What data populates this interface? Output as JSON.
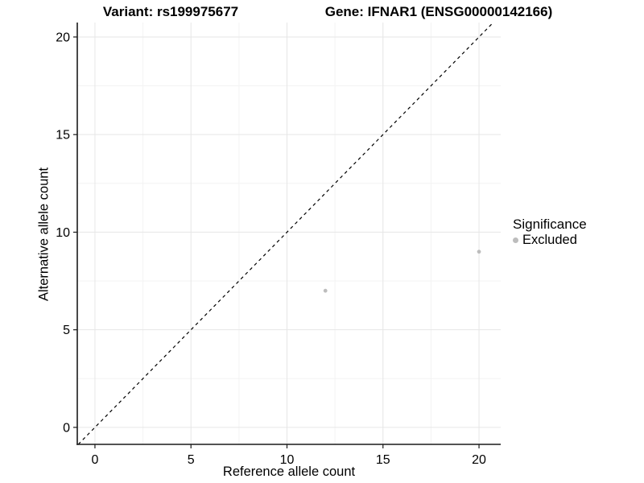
{
  "figure": {
    "title_variant": "Variant: rs199975677",
    "title_gene": "Gene: IFNAR1 (ENSG00000142166)"
  },
  "chart_data": {
    "type": "scatter",
    "title": "Variant: rs199975677 | Gene: IFNAR1 (ENSG00000142166)",
    "xlabel": "Reference allele count",
    "ylabel": "Alternative allele count",
    "xlim": [
      -0.92,
      21.13
    ],
    "ylim": [
      -0.87,
      20.74
    ],
    "x_major_ticks": [
      0,
      5,
      10,
      15,
      20
    ],
    "y_major_ticks": [
      0,
      5,
      10,
      15,
      20
    ],
    "x_minor_ticks": [
      2.5,
      7.5,
      12.5,
      17.5
    ],
    "y_minor_ticks": [
      2.5,
      7.5,
      12.5,
      17.5
    ],
    "grid": true,
    "identity_line": {
      "equation": "y = x",
      "style": "dashed",
      "color": "#000000"
    },
    "series": [
      {
        "name": "Excluded",
        "color": "#bdbdbd",
        "points": [
          {
            "x": 12,
            "y": 7
          },
          {
            "x": 20,
            "y": 9
          }
        ]
      }
    ],
    "legend": {
      "title": "Significance",
      "position": "right",
      "items": [
        {
          "label": "Excluded",
          "color": "#bdbdbd"
        }
      ]
    },
    "colors": {
      "grid_major": "#e6e6e6",
      "grid_minor": "#f3f3f3",
      "axis_line": "#1a1a1a",
      "point": "#bdbdbd"
    }
  }
}
